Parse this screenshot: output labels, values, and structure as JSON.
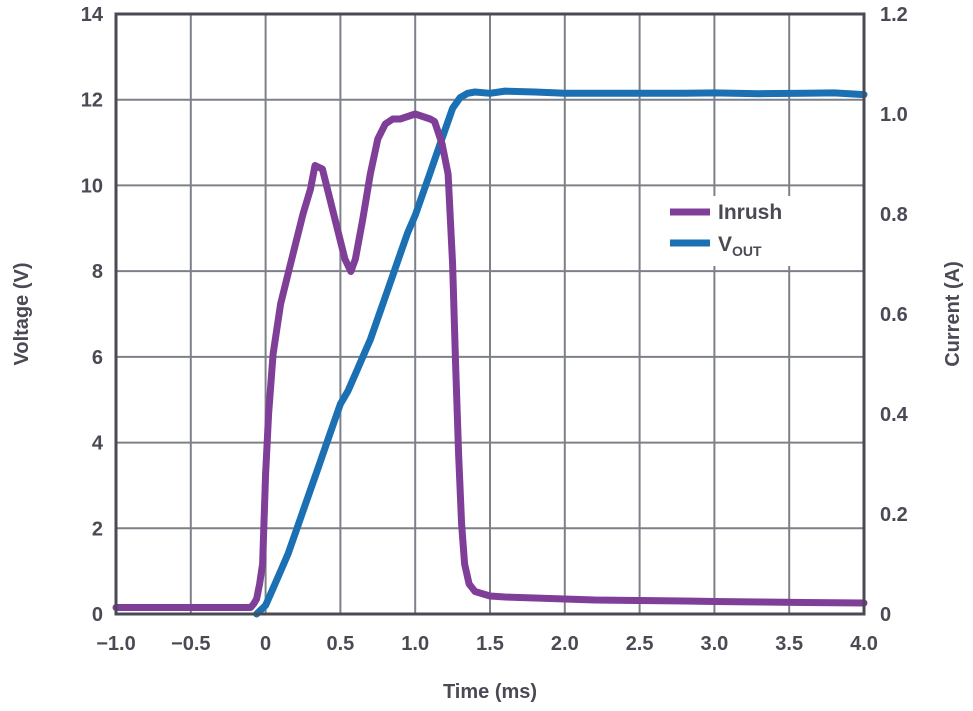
{
  "chart_data": {
    "type": "line",
    "title": "",
    "xlabel": "Time (ms)",
    "ylabel_left": "Voltage (V)",
    "ylabel_right": "Current (A)",
    "xlim": [
      -1.0,
      4.0
    ],
    "ylim_left": [
      0,
      14
    ],
    "ylim_right": [
      0,
      1.2
    ],
    "grid": true,
    "legend_position": "center-right",
    "x_ticks": [
      "−1.0",
      "−0.5",
      "0",
      "0.5",
      "1.0",
      "1.5",
      "2.0",
      "2.5",
      "3.0",
      "3.5",
      "4.0"
    ],
    "y_left_ticks": [
      "0",
      "2",
      "4",
      "6",
      "8",
      "10",
      "12",
      "14"
    ],
    "y_right_ticks": [
      "0",
      "0.2",
      "0.4",
      "0.6",
      "0.8",
      "1.0",
      "1.2"
    ],
    "series": [
      {
        "name": "Inrush",
        "axis": "right",
        "color": "#7f3f98",
        "points": [
          [
            -1.0,
            0.013
          ],
          [
            -0.2,
            0.013
          ],
          [
            -0.1,
            0.013
          ],
          [
            -0.08,
            0.02
          ],
          [
            -0.06,
            0.03
          ],
          [
            -0.04,
            0.06
          ],
          [
            -0.02,
            0.1
          ],
          [
            0.0,
            0.28
          ],
          [
            0.02,
            0.4
          ],
          [
            0.05,
            0.52
          ],
          [
            0.1,
            0.62
          ],
          [
            0.15,
            0.68
          ],
          [
            0.2,
            0.74
          ],
          [
            0.25,
            0.8
          ],
          [
            0.3,
            0.85
          ],
          [
            0.33,
            0.897
          ],
          [
            0.38,
            0.89
          ],
          [
            0.43,
            0.83
          ],
          [
            0.48,
            0.77
          ],
          [
            0.53,
            0.71
          ],
          [
            0.57,
            0.685
          ],
          [
            0.6,
            0.71
          ],
          [
            0.65,
            0.79
          ],
          [
            0.7,
            0.88
          ],
          [
            0.75,
            0.95
          ],
          [
            0.8,
            0.98
          ],
          [
            0.85,
            0.99
          ],
          [
            0.9,
            0.99
          ],
          [
            0.95,
            0.995
          ],
          [
            1.0,
            1.0
          ],
          [
            1.05,
            0.995
          ],
          [
            1.1,
            0.99
          ],
          [
            1.13,
            0.985
          ],
          [
            1.18,
            0.94
          ],
          [
            1.22,
            0.88
          ],
          [
            1.25,
            0.7
          ],
          [
            1.27,
            0.5
          ],
          [
            1.29,
            0.32
          ],
          [
            1.31,
            0.18
          ],
          [
            1.33,
            0.1
          ],
          [
            1.36,
            0.06
          ],
          [
            1.4,
            0.045
          ],
          [
            1.5,
            0.036
          ],
          [
            1.6,
            0.034
          ],
          [
            1.8,
            0.032
          ],
          [
            2.0,
            0.03
          ],
          [
            2.2,
            0.028
          ],
          [
            2.5,
            0.027
          ],
          [
            2.8,
            0.026
          ],
          [
            3.0,
            0.025
          ],
          [
            3.3,
            0.024
          ],
          [
            3.6,
            0.023
          ],
          [
            4.0,
            0.022
          ]
        ]
      },
      {
        "name": "V",
        "name_subscript": "OUT",
        "axis": "left",
        "color": "#1b6fb3",
        "points": [
          [
            -0.06,
            0.0
          ],
          [
            0.0,
            0.2
          ],
          [
            0.05,
            0.6
          ],
          [
            0.1,
            1.0
          ],
          [
            0.15,
            1.4
          ],
          [
            0.2,
            1.9
          ],
          [
            0.25,
            2.4
          ],
          [
            0.3,
            2.9
          ],
          [
            0.35,
            3.4
          ],
          [
            0.4,
            3.9
          ],
          [
            0.45,
            4.4
          ],
          [
            0.5,
            4.9
          ],
          [
            0.55,
            5.2
          ],
          [
            0.6,
            5.6
          ],
          [
            0.65,
            6.0
          ],
          [
            0.7,
            6.4
          ],
          [
            0.75,
            6.9
          ],
          [
            0.8,
            7.4
          ],
          [
            0.85,
            7.9
          ],
          [
            0.9,
            8.4
          ],
          [
            0.95,
            8.9
          ],
          [
            1.0,
            9.3
          ],
          [
            1.05,
            9.8
          ],
          [
            1.1,
            10.3
          ],
          [
            1.15,
            10.8
          ],
          [
            1.2,
            11.3
          ],
          [
            1.25,
            11.8
          ],
          [
            1.3,
            12.05
          ],
          [
            1.35,
            12.15
          ],
          [
            1.4,
            12.18
          ],
          [
            1.5,
            12.15
          ],
          [
            1.6,
            12.2
          ],
          [
            1.8,
            12.18
          ],
          [
            2.0,
            12.15
          ],
          [
            2.2,
            12.15
          ],
          [
            2.5,
            12.15
          ],
          [
            2.8,
            12.15
          ],
          [
            3.0,
            12.16
          ],
          [
            3.3,
            12.14
          ],
          [
            3.6,
            12.15
          ],
          [
            3.8,
            12.16
          ],
          [
            4.0,
            12.12
          ]
        ]
      }
    ]
  }
}
